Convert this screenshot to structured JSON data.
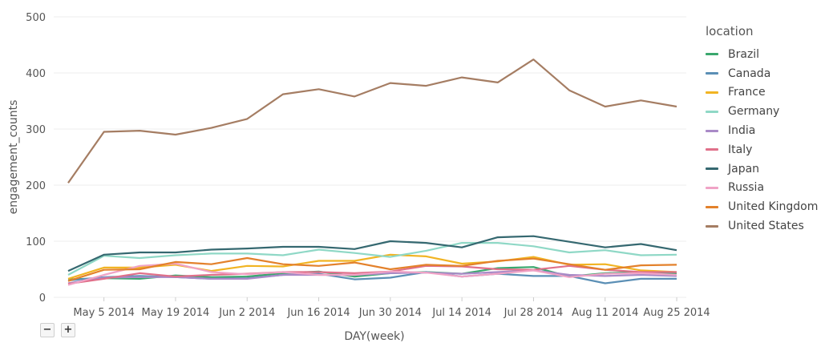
{
  "chart_data": {
    "type": "line",
    "xlabel": "DAY(week)",
    "ylabel": "engagement_counts",
    "ylim": [
      0,
      500
    ],
    "yticks": [
      "0",
      "100",
      "200",
      "300",
      "400",
      "500"
    ],
    "x": [
      "2014-04-28",
      "2014-05-05",
      "2014-05-12",
      "2014-05-19",
      "2014-05-26",
      "2014-06-02",
      "2014-06-09",
      "2014-06-16",
      "2014-06-23",
      "2014-06-30",
      "2014-07-07",
      "2014-07-14",
      "2014-07-21",
      "2014-07-28",
      "2014-08-04",
      "2014-08-11",
      "2014-08-18",
      "2014-08-25"
    ],
    "xtick_labels": [
      {
        "date": "2014-05-05",
        "label": "May 5 2014"
      },
      {
        "date": "2014-05-19",
        "label": "May 19 2014"
      },
      {
        "date": "2014-06-02",
        "label": "Jun 2 2014"
      },
      {
        "date": "2014-06-16",
        "label": "Jun 16 2014"
      },
      {
        "date": "2014-06-30",
        "label": "Jun 30 2014"
      },
      {
        "date": "2014-07-14",
        "label": "Jul 14 2014"
      },
      {
        "date": "2014-07-28",
        "label": "Jul 28 2014"
      },
      {
        "date": "2014-08-11",
        "label": "Aug 11 2014"
      },
      {
        "date": "2014-08-25",
        "label": "Aug 25 2014"
      }
    ],
    "legend_title": "location",
    "legend_position": "right",
    "grid": true,
    "series": [
      {
        "name": "Brazil",
        "color": "#3aa76d",
        "values": [
          32,
          34,
          33,
          39,
          36,
          37,
          43,
          46,
          37,
          43,
          45,
          42,
          52,
          54,
          37,
          43,
          45,
          43
        ]
      },
      {
        "name": "Canada",
        "color": "#5b8fb5",
        "values": [
          30,
          36,
          38,
          36,
          33,
          34,
          40,
          42,
          32,
          35,
          45,
          37,
          42,
          38,
          38,
          25,
          33,
          33
        ]
      },
      {
        "name": "France",
        "color": "#f1b423",
        "values": [
          33,
          53,
          53,
          58,
          47,
          56,
          55,
          65,
          65,
          76,
          73,
          60,
          64,
          72,
          58,
          59,
          48,
          45
        ]
      },
      {
        "name": "Germany",
        "color": "#8fd8c6",
        "values": [
          40,
          74,
          70,
          75,
          78,
          78,
          75,
          85,
          79,
          72,
          83,
          97,
          97,
          91,
          80,
          84,
          75,
          76
        ]
      },
      {
        "name": "India",
        "color": "#a98ac7",
        "values": [
          25,
          35,
          36,
          36,
          33,
          33,
          40,
          40,
          40,
          43,
          44,
          42,
          45,
          48,
          40,
          38,
          40,
          38
        ]
      },
      {
        "name": "Italy",
        "color": "#e0708a",
        "values": [
          24,
          33,
          43,
          37,
          40,
          42,
          45,
          45,
          43,
          46,
          56,
          55,
          50,
          49,
          56,
          49,
          45,
          45
        ]
      },
      {
        "name": "Japan",
        "color": "#356870",
        "values": [
          47,
          76,
          80,
          80,
          85,
          87,
          90,
          90,
          86,
          100,
          97,
          89,
          107,
          109,
          99,
          89,
          95,
          84
        ]
      },
      {
        "name": "Russia",
        "color": "#f0a3c6",
        "values": [
          22,
          40,
          56,
          60,
          45,
          41,
          45,
          40,
          40,
          46,
          44,
          37,
          42,
          48,
          36,
          42,
          43,
          40
        ]
      },
      {
        "name": "United Kingdom",
        "color": "#e3812b",
        "values": [
          29,
          49,
          50,
          63,
          59,
          70,
          59,
          56,
          62,
          50,
          58,
          56,
          65,
          69,
          59,
          49,
          57,
          58
        ]
      },
      {
        "name": "United States",
        "color": "#a57d63",
        "values": [
          204,
          295,
          297,
          290,
          302,
          318,
          362,
          371,
          358,
          382,
          377,
          392,
          383,
          424,
          369,
          340,
          351,
          340
        ]
      }
    ]
  },
  "controls": {
    "zoom_out_label": "−",
    "zoom_in_label": "+"
  }
}
